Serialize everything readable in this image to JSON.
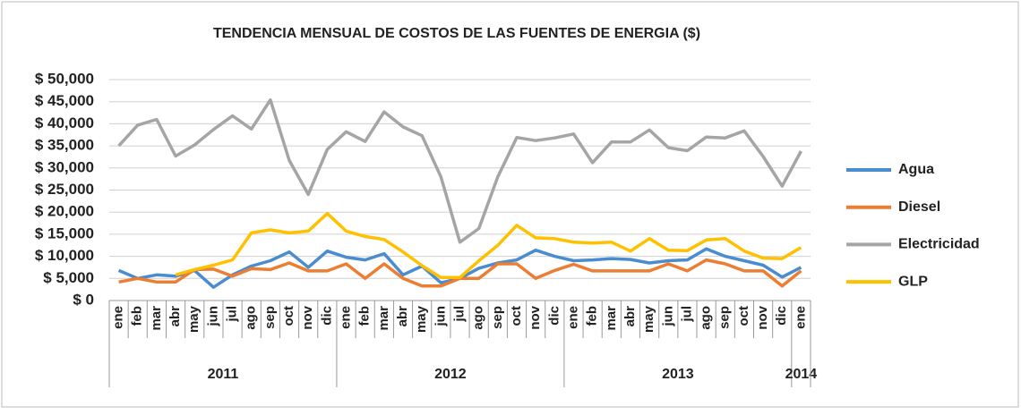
{
  "chart_data": {
    "type": "line",
    "title": "TENDENCIA MENSUAL DE COSTOS DE LAS FUENTES DE ENERGIA ($)",
    "category_groups": [
      {
        "name": "2011",
        "categories": [
          "ene",
          "feb",
          "mar",
          "abr",
          "may",
          "jun",
          "jul",
          "ago",
          "sep",
          "oct",
          "nov",
          "dic"
        ]
      },
      {
        "name": "2012",
        "categories": [
          "ene",
          "feb",
          "mar",
          "abr",
          "may",
          "jun",
          "jul",
          "ago",
          "sep",
          "oct",
          "nov",
          "dic"
        ]
      },
      {
        "name": "2013",
        "categories": [
          "ene",
          "feb",
          "mar",
          "abr",
          "may",
          "jun",
          "jul",
          "ago",
          "sep",
          "oct",
          "nov",
          "dic"
        ]
      },
      {
        "name": "2014",
        "categories": [
          "ene"
        ]
      }
    ],
    "series": [
      {
        "name": "Agua",
        "color": "#4a8cd0",
        "values": [
          6800,
          5000,
          5800,
          5500,
          6800,
          3000,
          5800,
          7800,
          9000,
          11000,
          7500,
          11200,
          9800,
          9200,
          10600,
          5800,
          7800,
          4000,
          5000,
          7300,
          8500,
          9200,
          11400,
          10000,
          9000,
          9200,
          9500,
          9300,
          8500,
          9000,
          9200,
          11700,
          10000,
          9000,
          8000,
          5300,
          7500
        ]
      },
      {
        "name": "Diesel",
        "color": "#ed7d31",
        "values": [
          4200,
          5000,
          4200,
          4200,
          7000,
          7100,
          5500,
          7200,
          7000,
          8500,
          6700,
          6700,
          8300,
          5000,
          8300,
          5000,
          3300,
          3300,
          5000,
          5000,
          8300,
          8300,
          5000,
          6800,
          8200,
          6700,
          6700,
          6700,
          6700,
          8300,
          6700,
          9200,
          8300,
          6700,
          6700,
          3300,
          6700
        ]
      },
      {
        "name": "Electricidad",
        "color": "#a5a5a5",
        "values": [
          35000,
          39700,
          41000,
          32700,
          35200,
          38700,
          41800,
          38800,
          45400,
          31700,
          24000,
          34200,
          38200,
          36000,
          42700,
          39300,
          37300,
          28000,
          13200,
          16300,
          28000,
          36900,
          36200,
          36800,
          37700,
          31200,
          35900,
          35900,
          38600,
          34600,
          33900,
          37000,
          36800,
          38400,
          32600,
          25900,
          33800
        ]
      },
      {
        "name": "GLP",
        "color": "#ffc000",
        "values": [
          null,
          null,
          null,
          5800,
          7000,
          8000,
          9200,
          15300,
          16000,
          15300,
          15700,
          19700,
          15700,
          14500,
          13800,
          11000,
          7900,
          5200,
          5200,
          9000,
          12500,
          17000,
          14200,
          14000,
          13200,
          13000,
          13200,
          11200,
          14000,
          11400,
          11300,
          13700,
          14000,
          11200,
          9600,
          9500,
          12000
        ]
      }
    ],
    "ylim": [
      0,
      50000
    ],
    "yticks": [
      {
        "value": 0,
        "label": "$ 0"
      },
      {
        "value": 5000,
        "label": "$ 5,000"
      },
      {
        "value": 10000,
        "label": "$ 10,000"
      },
      {
        "value": 15000,
        "label": "$ 15,000"
      },
      {
        "value": 20000,
        "label": "$ 20,000"
      },
      {
        "value": 25000,
        "label": "$ 25,000"
      },
      {
        "value": 30000,
        "label": "$ 30,000"
      },
      {
        "value": 35000,
        "label": "$ 35,000"
      },
      {
        "value": 40000,
        "label": "$ 40,000"
      },
      {
        "value": 45000,
        "label": "$ 45,000"
      },
      {
        "value": 50000,
        "label": "$ 50,000"
      }
    ],
    "grid": true,
    "legend": "right"
  }
}
